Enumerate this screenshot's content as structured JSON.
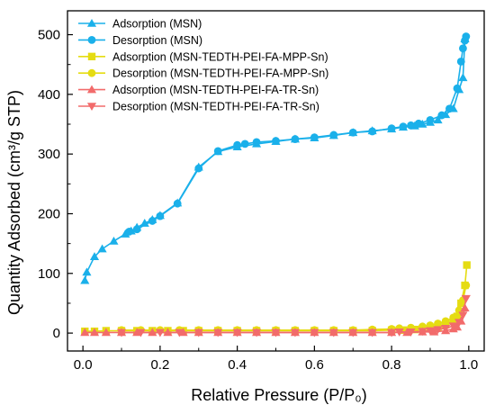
{
  "chart_data": {
    "type": "line",
    "xlabel": "Relative Pressure (P/P₀)",
    "ylabel": "Quantity Adsorbed (cm³/g STP)",
    "xlim": [
      -0.04,
      1.04
    ],
    "ylim": [
      -30,
      540
    ],
    "xticks": [
      0.0,
      0.2,
      0.4,
      0.6,
      0.8,
      1.0
    ],
    "xtick_labels": [
      "0.0",
      "0.2",
      "0.4",
      "0.6",
      "0.8",
      "1.0"
    ],
    "yticks": [
      0,
      100,
      200,
      300,
      400,
      500
    ],
    "ytick_labels": [
      "0",
      "100",
      "200",
      "300",
      "400",
      "500"
    ],
    "legend_position": "top-left",
    "series": [
      {
        "name": "Adsorption (MSN)",
        "color": "#1ab0ea",
        "marker": "triangle-up",
        "x": [
          0.005,
          0.01,
          0.03,
          0.05,
          0.08,
          0.11,
          0.125,
          0.14,
          0.16,
          0.18,
          0.2,
          0.245,
          0.3,
          0.35,
          0.4,
          0.45,
          0.5,
          0.55,
          0.6,
          0.65,
          0.7,
          0.75,
          0.8,
          0.83,
          0.86,
          0.88,
          0.9,
          0.92,
          0.94,
          0.96,
          0.975,
          0.985,
          0.99
        ],
        "y": [
          88,
          102,
          128,
          141,
          154,
          166,
          171,
          177,
          184,
          190,
          197,
          218,
          278,
          304,
          312,
          317,
          321,
          325,
          327,
          331,
          336,
          339,
          342,
          345,
          347,
          350,
          353,
          357,
          366,
          376,
          408,
          428,
          493
        ]
      },
      {
        "name": "Desorption (MSN)",
        "color": "#1ab0ea",
        "marker": "circle",
        "x": [
          0.993,
          0.99,
          0.985,
          0.98,
          0.97,
          0.95,
          0.93,
          0.9,
          0.87,
          0.85,
          0.83,
          0.8,
          0.75,
          0.7,
          0.65,
          0.6,
          0.55,
          0.5,
          0.45,
          0.42,
          0.4,
          0.35,
          0.3,
          0.245,
          0.2,
          0.18,
          0.14,
          0.12
        ],
        "y": [
          497,
          490,
          477,
          455,
          410,
          376,
          365,
          357,
          351,
          348,
          346,
          343,
          338,
          336,
          332,
          328,
          325,
          322,
          320,
          317,
          315,
          305,
          276,
          217,
          196,
          188,
          174,
          170
        ]
      },
      {
        "name": "Adsorption (MSN-TEDTH-PEI-FA-MPP-Sn)",
        "color": "#e5dc12",
        "marker": "square",
        "x": [
          0.005,
          0.03,
          0.06,
          0.1,
          0.14,
          0.18,
          0.22,
          0.26,
          0.3,
          0.35,
          0.4,
          0.45,
          0.5,
          0.55,
          0.6,
          0.65,
          0.7,
          0.75,
          0.8,
          0.83,
          0.86,
          0.88,
          0.9,
          0.92,
          0.94,
          0.96,
          0.97,
          0.98,
          0.99,
          0.995
        ],
        "y": [
          3,
          3,
          4,
          4,
          4,
          4,
          4,
          4,
          4,
          4,
          4,
          4,
          4,
          4,
          4,
          4,
          4,
          4,
          5,
          5,
          6,
          7,
          8,
          10,
          14,
          20,
          28,
          50,
          80,
          114
        ]
      },
      {
        "name": "Desorption (MSN-TEDTH-PEI-FA-MPP-Sn)",
        "color": "#e5dc12",
        "marker": "circle",
        "x": [
          0.993,
          0.985,
          0.975,
          0.96,
          0.94,
          0.92,
          0.9,
          0.88,
          0.85,
          0.82,
          0.8,
          0.75,
          0.7,
          0.65,
          0.6,
          0.55,
          0.5,
          0.45,
          0.4,
          0.35,
          0.3,
          0.25,
          0.2,
          0.15,
          0.1
        ],
        "y": [
          80,
          55,
          38,
          26,
          20,
          16,
          13,
          11,
          9,
          8,
          7,
          6,
          5,
          5,
          5,
          5,
          5,
          5,
          5,
          5,
          5,
          5,
          5,
          5,
          5
        ]
      },
      {
        "name": "Adsorption (MSN-TEDTH-PEI-FA-TR-Sn)",
        "color": "#f26b6b",
        "marker": "triangle-up",
        "x": [
          0.005,
          0.03,
          0.06,
          0.1,
          0.14,
          0.18,
          0.22,
          0.26,
          0.3,
          0.35,
          0.4,
          0.45,
          0.5,
          0.55,
          0.6,
          0.65,
          0.7,
          0.75,
          0.8,
          0.84,
          0.88,
          0.91,
          0.94,
          0.96,
          0.97,
          0.98,
          0.99
        ],
        "y": [
          1,
          1,
          1,
          1,
          1,
          1,
          1,
          1,
          1,
          1,
          1,
          1,
          1,
          1,
          1,
          1,
          1,
          1,
          1,
          1,
          2,
          2,
          4,
          7,
          10,
          20,
          42
        ]
      },
      {
        "name": "Desorption (MSN-TEDTH-PEI-FA-TR-Sn)",
        "color": "#f26b6b",
        "marker": "triangle-down",
        "x": [
          0.993,
          0.985,
          0.975,
          0.96,
          0.94,
          0.92,
          0.9,
          0.88,
          0.85,
          0.82,
          0.8,
          0.75,
          0.7,
          0.65,
          0.6,
          0.55,
          0.5,
          0.45,
          0.4,
          0.35,
          0.3,
          0.25,
          0.2,
          0.15,
          0.1
        ],
        "y": [
          58,
          30,
          18,
          12,
          8,
          6,
          4,
          3,
          2,
          2,
          1,
          1,
          1,
          1,
          1,
          1,
          1,
          1,
          1,
          1,
          1,
          1,
          1,
          1,
          1
        ]
      }
    ]
  }
}
